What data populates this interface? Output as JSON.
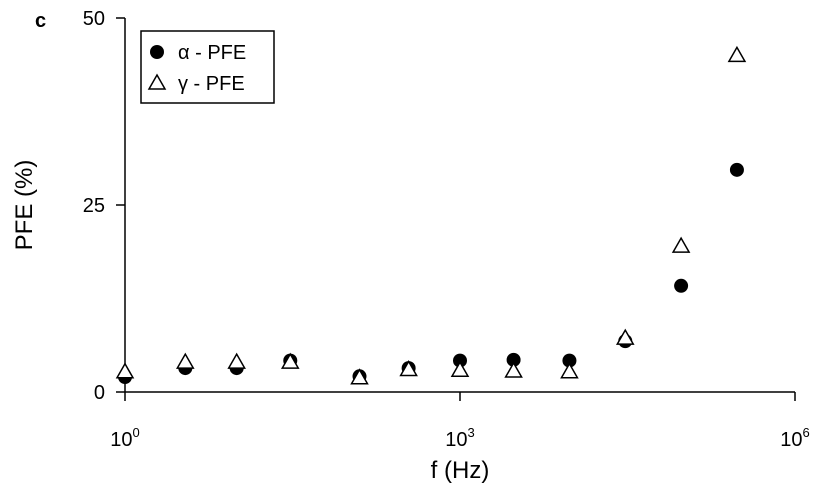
{
  "panel_label": "c",
  "chart_data": {
    "type": "scatter",
    "x_scale": "log10",
    "xlim_exp": [
      0,
      6
    ],
    "xticks": [
      {
        "base": "10",
        "exp": "0",
        "value_exp": 0
      },
      {
        "base": "10",
        "exp": "3",
        "value_exp": 3
      },
      {
        "base": "10",
        "exp": "6",
        "value_exp": 6
      }
    ],
    "xlabel": "f (Hz)",
    "ylabel": "PFE (%)",
    "ylim": [
      0,
      50
    ],
    "yticks": [
      0,
      25,
      50
    ],
    "ytick_labels": [
      "0",
      "25",
      "50"
    ],
    "legend_position": "top-left",
    "series": [
      {
        "name": "α - PFE",
        "marker": "filled-circle",
        "color": "#000000",
        "log10_x": [
          0,
          0.54,
          1.0,
          1.48,
          2.1,
          2.54,
          3.0,
          3.48,
          3.98,
          4.48,
          4.98,
          5.48
        ],
        "y": [
          2,
          3.2,
          3.2,
          4.2,
          2.1,
          3.2,
          4.2,
          4.3,
          4.2,
          6.8,
          14.2,
          29.7
        ]
      },
      {
        "name": "γ - PFE",
        "marker": "open-triangle",
        "color": "#000000",
        "log10_x": [
          0,
          0.54,
          1.0,
          1.48,
          2.1,
          2.54,
          3.0,
          3.48,
          3.98,
          4.48,
          4.98,
          5.48
        ],
        "y": [
          2.7,
          4.0,
          4.0,
          4.0,
          1.9,
          3.0,
          2.9,
          2.8,
          2.7,
          7.2,
          19.5,
          45.0
        ]
      }
    ]
  }
}
